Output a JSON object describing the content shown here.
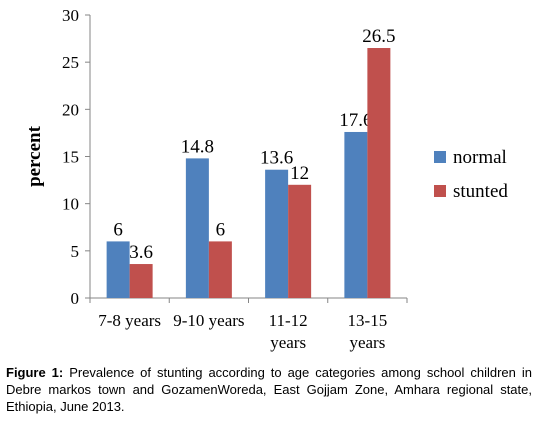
{
  "chart_data": {
    "type": "bar",
    "ylabel": "percent",
    "ylim": [
      0,
      30
    ],
    "yticks": [
      0,
      5,
      10,
      15,
      20,
      25,
      30
    ],
    "categories": [
      [
        "7-8 years"
      ],
      [
        "9-10 years"
      ],
      [
        "11-12",
        "years"
      ],
      [
        "13-15",
        "years"
      ]
    ],
    "series": [
      {
        "name": "normal",
        "color": "#4f81bd",
        "values": [
          6,
          14.8,
          13.6,
          17.6
        ],
        "labels": [
          "6",
          "14.8",
          "13.6",
          "17.6"
        ]
      },
      {
        "name": "stunted",
        "color": "#c0504d",
        "values": [
          3.6,
          6,
          12,
          26.5
        ],
        "labels": [
          "3.6",
          "6",
          "12",
          "26.5"
        ]
      }
    ],
    "legend_position": "right",
    "grid": false
  },
  "caption": {
    "label": "Figure 1:",
    "text": "Prevalence of stunting according to age categories among school children in Debre markos town and GozamenWoreda, East Gojjam Zone, Amhara regional state, Ethiopia, June 2013."
  }
}
